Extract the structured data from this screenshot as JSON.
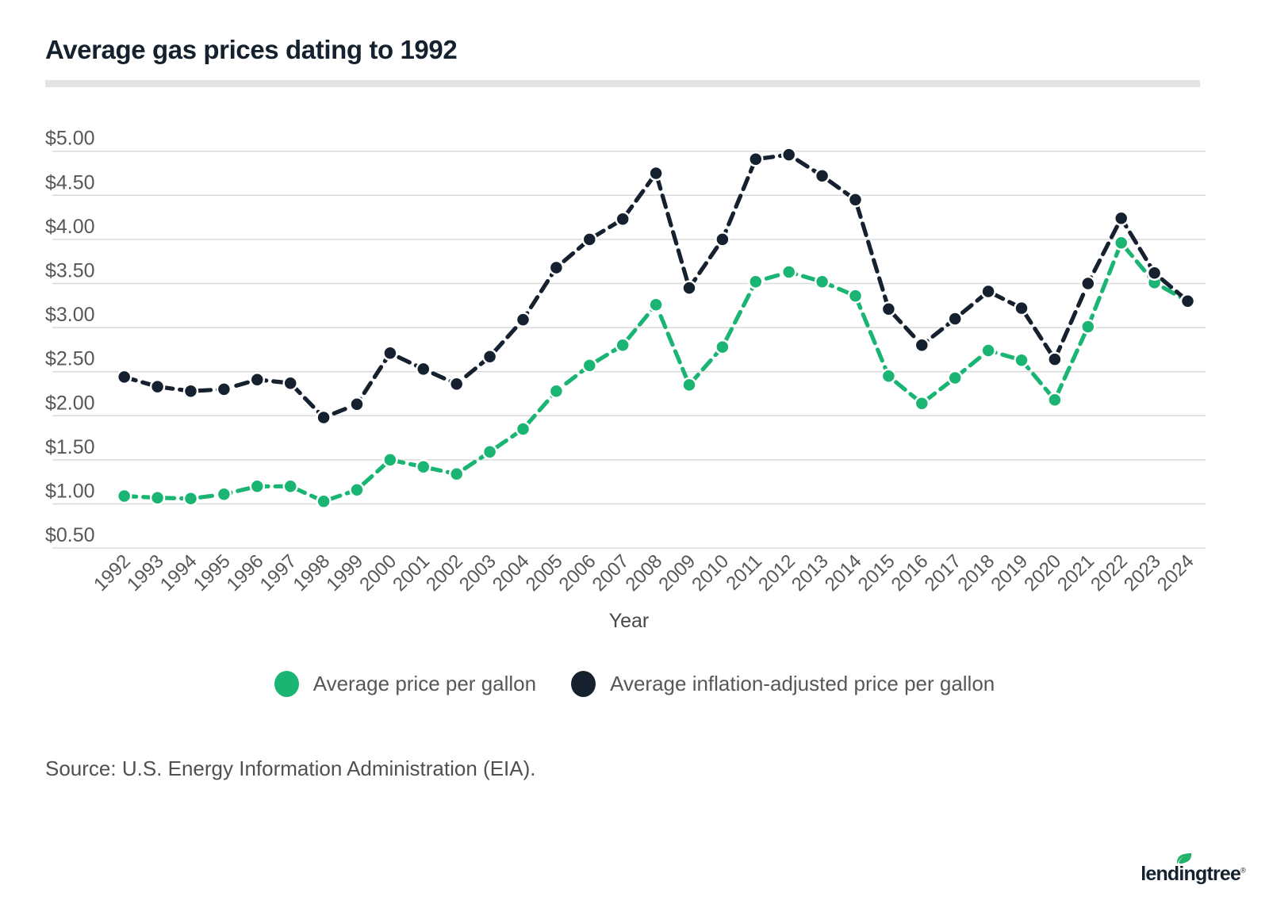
{
  "title": "Average gas prices dating to 1992",
  "chart_data": {
    "type": "line",
    "x": [
      1992,
      1993,
      1994,
      1995,
      1996,
      1997,
      1998,
      1999,
      2000,
      2001,
      2002,
      2003,
      2004,
      2005,
      2006,
      2007,
      2008,
      2009,
      2010,
      2011,
      2012,
      2013,
      2014,
      2015,
      2016,
      2017,
      2018,
      2019,
      2020,
      2021,
      2022,
      2023,
      2024
    ],
    "series": [
      {
        "name": "Average price per gallon",
        "color": "#1ab573",
        "values": [
          1.09,
          1.07,
          1.06,
          1.11,
          1.2,
          1.2,
          1.03,
          1.16,
          1.5,
          1.42,
          1.34,
          1.59,
          1.85,
          2.28,
          2.57,
          2.8,
          3.26,
          2.35,
          2.78,
          3.52,
          3.63,
          3.52,
          3.36,
          2.45,
          2.14,
          2.43,
          2.74,
          2.63,
          2.18,
          3.01,
          3.96,
          3.51,
          3.3
        ]
      },
      {
        "name": "Average inflation-adjusted price per gallon",
        "color": "#15212f",
        "values": [
          2.44,
          2.33,
          2.28,
          2.3,
          2.41,
          2.37,
          1.98,
          2.13,
          2.71,
          2.53,
          2.36,
          2.67,
          3.09,
          3.68,
          4.0,
          4.23,
          4.75,
          3.45,
          4.0,
          4.91,
          4.96,
          4.72,
          4.45,
          3.21,
          2.8,
          3.1,
          3.41,
          3.22,
          2.64,
          3.5,
          4.24,
          3.62,
          3.3
        ]
      }
    ],
    "xlabel": "Year",
    "ylim": [
      0.5,
      5.0
    ],
    "ytick_step": 0.5,
    "ytick_prefix": "$",
    "grid": true,
    "legend_position": "bottom"
  },
  "axis_style": {
    "tick_color": "#55575b",
    "grid_color": "#d9d9d9",
    "axis_title_color": "#46484c"
  },
  "source_note": "Source: U.S. Energy Information Administration (EIA).",
  "branding": {
    "logo_text": "lendingtree",
    "logo_registered": "®",
    "logo_color": "#14212e",
    "leaf_color": "#21b26b"
  }
}
